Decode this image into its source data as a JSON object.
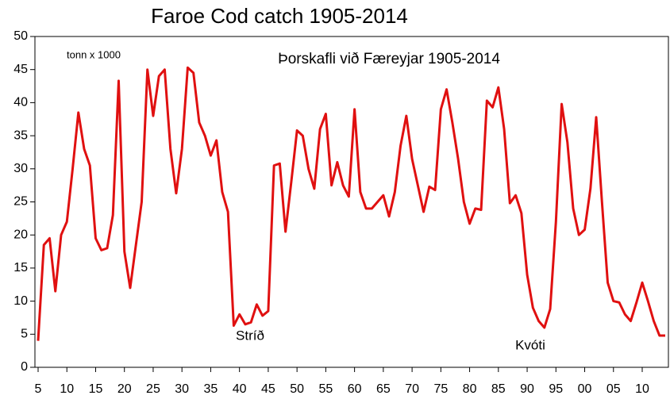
{
  "chart_data": {
    "type": "line",
    "title": "Faroe Cod catch 1905-2014",
    "subtitle": "Þorskafli við Færeyjar 1905-2014",
    "y_label": "tonn x 1000",
    "annotations": [
      "Stríð",
      "Kvóti"
    ],
    "color": "#e01010",
    "x": [
      1905,
      1906,
      1907,
      1908,
      1909,
      1910,
      1911,
      1912,
      1913,
      1914,
      1915,
      1916,
      1917,
      1918,
      1919,
      1920,
      1921,
      1922,
      1923,
      1924,
      1925,
      1926,
      1927,
      1928,
      1929,
      1930,
      1931,
      1932,
      1933,
      1934,
      1935,
      1936,
      1937,
      1938,
      1939,
      1940,
      1941,
      1942,
      1943,
      1944,
      1945,
      1946,
      1947,
      1948,
      1949,
      1950,
      1951,
      1952,
      1953,
      1954,
      1955,
      1956,
      1957,
      1958,
      1959,
      1960,
      1961,
      1962,
      1963,
      1964,
      1965,
      1966,
      1967,
      1968,
      1969,
      1970,
      1971,
      1972,
      1973,
      1974,
      1975,
      1976,
      1977,
      1978,
      1979,
      1980,
      1981,
      1982,
      1983,
      1984,
      1985,
      1986,
      1987,
      1988,
      1989,
      1990,
      1991,
      1992,
      1993,
      1994,
      1995,
      1996,
      1997,
      1998,
      1999,
      2000,
      2001,
      2002,
      2003,
      2004,
      2005,
      2006,
      2007,
      2008,
      2009,
      2010,
      2011,
      2012,
      2013,
      2014
    ],
    "values": [
      4,
      18.5,
      19.5,
      11.5,
      20,
      22,
      30,
      38.5,
      33,
      30.5,
      19.5,
      17.7,
      18,
      23,
      43.3,
      17.5,
      12,
      18.5,
      25,
      45,
      38,
      44,
      45,
      33,
      26.3,
      33,
      45.3,
      44.5,
      37,
      35,
      32,
      34.3,
      26.5,
      23.5,
      6.3,
      8,
      6.5,
      6.8,
      9.5,
      7.8,
      8.5,
      30.5,
      30.8,
      20.5,
      28,
      35.8,
      35,
      30,
      27,
      36,
      38.3,
      27.5,
      31,
      27.5,
      25.8,
      39,
      26.5,
      24,
      24,
      25,
      26,
      22.8,
      26.5,
      33.5,
      38,
      31.5,
      27.5,
      23.5,
      27.3,
      26.8,
      39,
      42,
      37,
      31.5,
      25,
      21.7,
      24,
      23.8,
      40.3,
      39.3,
      42.3,
      36,
      24.8,
      26,
      23.3,
      14,
      9,
      7,
      6,
      8.8,
      22,
      39.8,
      34,
      24,
      20,
      20.8,
      27,
      37.8,
      25,
      12.8,
      10,
      9.8,
      8,
      7,
      9.8,
      12.8,
      10,
      7,
      4.8,
      4.8
    ],
    "xlim": [
      1905,
      2014
    ],
    "ylim": [
      0,
      50
    ],
    "yticks": [
      0,
      5,
      10,
      15,
      20,
      25,
      30,
      35,
      40,
      45,
      50
    ],
    "xticks": [
      {
        "value": 1905,
        "label": "5"
      },
      {
        "value": 1910,
        "label": "10"
      },
      {
        "value": 1915,
        "label": "15"
      },
      {
        "value": 1920,
        "label": "20"
      },
      {
        "value": 1925,
        "label": "25"
      },
      {
        "value": 1930,
        "label": "30"
      },
      {
        "value": 1935,
        "label": "35"
      },
      {
        "value": 1940,
        "label": "40"
      },
      {
        "value": 1945,
        "label": "45"
      },
      {
        "value": 1950,
        "label": "50"
      },
      {
        "value": 1955,
        "label": "55"
      },
      {
        "value": 1960,
        "label": "60"
      },
      {
        "value": 1965,
        "label": "65"
      },
      {
        "value": 1970,
        "label": "70"
      },
      {
        "value": 1975,
        "label": "75"
      },
      {
        "value": 1980,
        "label": "80"
      },
      {
        "value": 1985,
        "label": "85"
      },
      {
        "value": 1990,
        "label": "90"
      },
      {
        "value": 1995,
        "label": "95"
      },
      {
        "value": 2000,
        "label": "00"
      },
      {
        "value": 2005,
        "label": "05"
      },
      {
        "value": 2010,
        "label": "10"
      }
    ]
  }
}
